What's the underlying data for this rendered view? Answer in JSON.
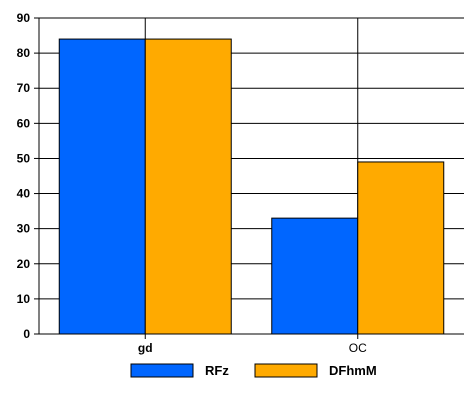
{
  "chart_data": {
    "type": "bar",
    "title": "",
    "xlabel": "",
    "ylabel": "",
    "categories": [
      "gd",
      "OC"
    ],
    "category_bold": [
      true,
      false
    ],
    "series": [
      {
        "name": "RFz",
        "values": [
          84,
          33
        ],
        "color": "#0066ff"
      },
      {
        "name": "DFhmM",
        "values": [
          84,
          49
        ],
        "color": "#ffaa00"
      }
    ],
    "ylim": [
      0,
      90
    ],
    "yticks": [
      0,
      10,
      20,
      30,
      40,
      50,
      60,
      70,
      80,
      90
    ],
    "grid": true,
    "legend": "bottom-center"
  }
}
